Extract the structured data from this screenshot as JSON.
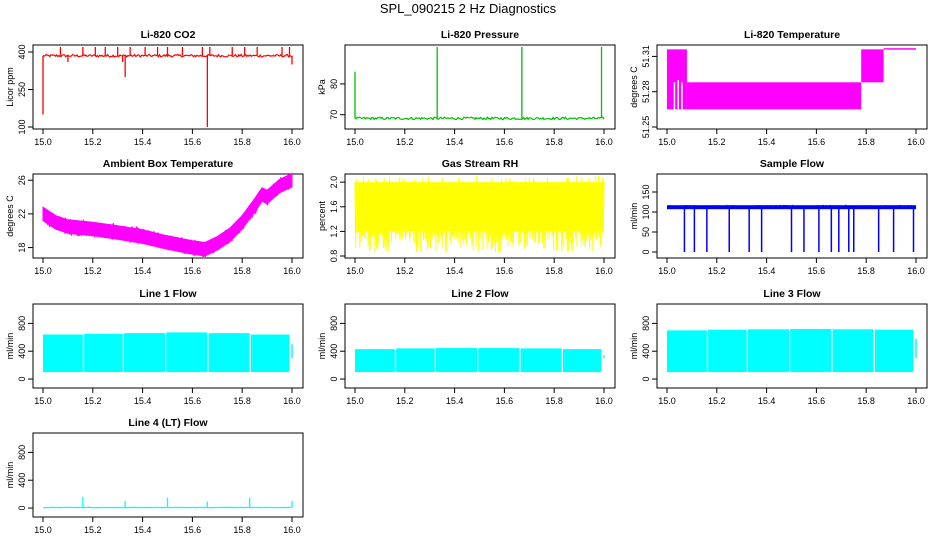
{
  "figure": {
    "title": "SPL_090215  2 Hz Diagnostics"
  },
  "chart_data": [
    {
      "type": "line",
      "title": "Li-820 CO2",
      "ylabel": "Licor ppm",
      "color": "#ff0000",
      "xlim": [
        15.0,
        16.0
      ],
      "ylim": [
        100,
        420
      ],
      "x_ticks": [
        "15.0",
        "15.2",
        "15.4",
        "15.6",
        "15.8",
        "16.0"
      ],
      "y_ticks": [
        {
          "v": 100,
          "label": "100"
        },
        {
          "v": 250,
          "label": "250"
        },
        {
          "v": 400,
          "label": "400"
        }
      ],
      "baseline": 385,
      "noise": 5,
      "pattern": "spikes",
      "spikes": [
        {
          "x": 15.0,
          "y": 150
        },
        {
          "x": 15.07,
          "y": 420
        },
        {
          "x": 15.1,
          "y": 360
        },
        {
          "x": 15.16,
          "y": 420
        },
        {
          "x": 15.21,
          "y": 420
        },
        {
          "x": 15.25,
          "y": 420
        },
        {
          "x": 15.3,
          "y": 420
        },
        {
          "x": 15.32,
          "y": 360
        },
        {
          "x": 15.33,
          "y": 300
        },
        {
          "x": 15.35,
          "y": 420
        },
        {
          "x": 15.41,
          "y": 420
        },
        {
          "x": 15.46,
          "y": 420
        },
        {
          "x": 15.5,
          "y": 420
        },
        {
          "x": 15.56,
          "y": 420
        },
        {
          "x": 15.64,
          "y": 420
        },
        {
          "x": 15.66,
          "y": 100
        },
        {
          "x": 15.67,
          "y": 420
        },
        {
          "x": 15.76,
          "y": 420
        },
        {
          "x": 15.81,
          "y": 420
        },
        {
          "x": 15.86,
          "y": 420
        },
        {
          "x": 15.96,
          "y": 420
        },
        {
          "x": 15.99,
          "y": 420
        },
        {
          "x": 16.0,
          "y": 350
        }
      ]
    },
    {
      "type": "line",
      "title": "Li-820 Pressure",
      "ylabel": "kPa",
      "color": "#00c000",
      "xlim": [
        15.0,
        16.0
      ],
      "ylim": [
        66,
        92
      ],
      "x_ticks": [
        "15.0",
        "15.2",
        "15.4",
        "15.6",
        "15.8",
        "16.0"
      ],
      "y_ticks": [
        {
          "v": 70,
          "label": "70"
        },
        {
          "v": 80,
          "label": "80"
        }
      ],
      "baseline": 68.8,
      "noise": 0.4,
      "pattern": "spikes",
      "spikes": [
        {
          "x": 15.0,
          "y": 84
        },
        {
          "x": 15.33,
          "y": 92
        },
        {
          "x": 15.67,
          "y": 92
        },
        {
          "x": 15.99,
          "y": 92
        }
      ]
    },
    {
      "type": "line",
      "title": "Li-820 Temperature",
      "ylabel": "degrees C",
      "color": "#ff00ff",
      "xlim": [
        15.0,
        16.0
      ],
      "ylim": [
        51.25,
        51.318
      ],
      "x_ticks": [
        "15.0",
        "15.2",
        "15.4",
        "15.6",
        "15.8",
        "16.0"
      ],
      "y_ticks": [
        {
          "v": 51.25,
          "label": "51.25"
        },
        {
          "v": 51.28,
          "label": "51.28"
        },
        {
          "v": 51.31,
          "label": "51.31"
        }
      ],
      "pattern": "bands",
      "bands": [
        {
          "x0": 15.0,
          "x1": 15.08,
          "ylo": 51.265,
          "yhi": 51.316
        },
        {
          "x0": 15.08,
          "x1": 15.78,
          "ylo": 51.265,
          "yhi": 51.288
        },
        {
          "x0": 15.78,
          "x1": 15.87,
          "ylo": 51.288,
          "yhi": 51.316
        },
        {
          "x0": 15.87,
          "x1": 16.0,
          "ylo": 51.316,
          "yhi": 51.317
        }
      ],
      "gaps": [
        {
          "x": 15.03,
          "ylo": 51.25,
          "yhi": 51.288
        },
        {
          "x": 15.045,
          "ylo": 51.25,
          "yhi": 51.29
        },
        {
          "x": 15.06,
          "ylo": 51.25,
          "yhi": 51.288
        },
        {
          "x": 15.88,
          "ylo": 51.288,
          "yhi": 51.316
        }
      ]
    },
    {
      "type": "line",
      "title": "Ambient Box Temperature",
      "ylabel": "degrees C",
      "color": "#ff00ff",
      "xlim": [
        15.0,
        16.0
      ],
      "ylim": [
        17,
        26.5
      ],
      "x_ticks": [
        "15.0",
        "15.2",
        "15.4",
        "15.6",
        "15.8",
        "16.0"
      ],
      "y_ticks": [
        {
          "v": 18,
          "label": "18"
        },
        {
          "v": 22,
          "label": "22"
        },
        {
          "v": 26,
          "label": "26"
        }
      ],
      "pattern": "curve",
      "thickness": 0.8,
      "points": [
        {
          "x": 15.0,
          "y": 22.0
        },
        {
          "x": 15.05,
          "y": 21.0
        },
        {
          "x": 15.1,
          "y": 20.5
        },
        {
          "x": 15.2,
          "y": 20.2
        },
        {
          "x": 15.3,
          "y": 19.8
        },
        {
          "x": 15.4,
          "y": 19.3
        },
        {
          "x": 15.5,
          "y": 18.6
        },
        {
          "x": 15.6,
          "y": 18.0
        },
        {
          "x": 15.65,
          "y": 17.8
        },
        {
          "x": 15.7,
          "y": 18.5
        },
        {
          "x": 15.75,
          "y": 19.5
        },
        {
          "x": 15.8,
          "y": 21.0
        },
        {
          "x": 15.85,
          "y": 23.0
        },
        {
          "x": 15.88,
          "y": 24.3
        },
        {
          "x": 15.9,
          "y": 24.0
        },
        {
          "x": 15.95,
          "y": 25.3
        },
        {
          "x": 16.0,
          "y": 26.0
        }
      ]
    },
    {
      "type": "line",
      "title": "Gas Stream RH",
      "ylabel": "percent",
      "color": "#ffff00",
      "xlim": [
        15.0,
        16.0
      ],
      "ylim": [
        0.8,
        2.1
      ],
      "x_ticks": [
        "15.0",
        "15.2",
        "15.4",
        "15.6",
        "15.8",
        "16.0"
      ],
      "y_ticks": [
        {
          "v": 0.8,
          "label": "0.8"
        },
        {
          "v": 1.2,
          "label": "1.2"
        },
        {
          "v": 1.6,
          "label": "1.6"
        },
        {
          "v": 2.0,
          "label": "2.0"
        }
      ],
      "pattern": "band",
      "band": {
        "ylo": 1.2,
        "yhi": 2.0,
        "extlo": 0.85,
        "exthi": 2.1
      }
    },
    {
      "type": "line",
      "title": "Sample Flow",
      "ylabel": "ml/min",
      "color": "#0000ff",
      "xlim": [
        15.0,
        16.0
      ],
      "ylim": [
        -10,
        190
      ],
      "x_ticks": [
        "15.0",
        "15.2",
        "15.4",
        "15.6",
        "15.8",
        "16.0"
      ],
      "y_ticks": [
        {
          "v": 0,
          "label": "0"
        },
        {
          "v": 50,
          "label": "50"
        },
        {
          "v": 100,
          "label": "100"
        },
        {
          "v": 150,
          "label": "150"
        }
      ],
      "baseline": 112,
      "noise": 3,
      "pattern": "drops",
      "drops": [
        15.07,
        15.11,
        15.16,
        15.25,
        15.33,
        15.38,
        15.5,
        15.55,
        15.61,
        15.66,
        15.69,
        15.73,
        15.75,
        15.85,
        15.91,
        15.99
      ],
      "drop_to": 0
    },
    {
      "type": "line",
      "title": "Line 1 Flow",
      "ylabel": "ml/min",
      "color": "#00ffff",
      "xlim": [
        15.0,
        16.0
      ],
      "ylim": [
        -100,
        1050
      ],
      "x_ticks": [
        "15.0",
        "15.2",
        "15.4",
        "15.6",
        "15.8",
        "16.0"
      ],
      "y_ticks": [
        {
          "v": 0,
          "label": "0"
        },
        {
          "v": 400,
          "label": "400"
        },
        {
          "v": 800,
          "label": "800"
        }
      ],
      "pattern": "blocks",
      "ylo": 100,
      "segments": [
        {
          "x0": 15.0,
          "x1": 15.16,
          "yhi": 640
        },
        {
          "x0": 15.165,
          "x1": 15.32,
          "yhi": 650
        },
        {
          "x0": 15.325,
          "x1": 15.49,
          "yhi": 660
        },
        {
          "x0": 15.495,
          "x1": 15.66,
          "yhi": 670
        },
        {
          "x0": 15.665,
          "x1": 15.83,
          "yhi": 660
        },
        {
          "x0": 15.835,
          "x1": 15.99,
          "yhi": 640
        }
      ],
      "tail": {
        "x": 16.0,
        "y": 500
      }
    },
    {
      "type": "line",
      "title": "Line 2 Flow",
      "ylabel": "ml/min",
      "color": "#00ffff",
      "xlim": [
        15.0,
        16.0
      ],
      "ylim": [
        -100,
        1050
      ],
      "x_ticks": [
        "15.0",
        "15.2",
        "15.4",
        "15.6",
        "15.8",
        "16.0"
      ],
      "y_ticks": [
        {
          "v": 0,
          "label": "0"
        },
        {
          "v": 400,
          "label": "400"
        },
        {
          "v": 800,
          "label": "800"
        }
      ],
      "pattern": "blocks",
      "ylo": 100,
      "segments": [
        {
          "x0": 15.0,
          "x1": 15.16,
          "yhi": 430
        },
        {
          "x0": 15.165,
          "x1": 15.32,
          "yhi": 440
        },
        {
          "x0": 15.325,
          "x1": 15.49,
          "yhi": 445
        },
        {
          "x0": 15.495,
          "x1": 15.66,
          "yhi": 445
        },
        {
          "x0": 15.665,
          "x1": 15.83,
          "yhi": 440
        },
        {
          "x0": 15.835,
          "x1": 15.99,
          "yhi": 430
        }
      ],
      "tail": {
        "x": 16.0,
        "y": 340
      }
    },
    {
      "type": "line",
      "title": "Line 3 Flow",
      "ylabel": "ml/min",
      "color": "#00ffff",
      "xlim": [
        15.0,
        16.0
      ],
      "ylim": [
        -100,
        1050
      ],
      "x_ticks": [
        "15.0",
        "15.2",
        "15.4",
        "15.6",
        "15.8",
        "16.0"
      ],
      "y_ticks": [
        {
          "v": 0,
          "label": "0"
        },
        {
          "v": 400,
          "label": "400"
        },
        {
          "v": 800,
          "label": "800"
        }
      ],
      "pattern": "blocks",
      "ylo": 100,
      "segments": [
        {
          "x0": 15.0,
          "x1": 15.16,
          "yhi": 700
        },
        {
          "x0": 15.165,
          "x1": 15.32,
          "yhi": 710
        },
        {
          "x0": 15.325,
          "x1": 15.49,
          "yhi": 715
        },
        {
          "x0": 15.495,
          "x1": 15.66,
          "yhi": 720
        },
        {
          "x0": 15.665,
          "x1": 15.83,
          "yhi": 715
        },
        {
          "x0": 15.835,
          "x1": 15.99,
          "yhi": 710
        }
      ],
      "tail": {
        "x": 16.0,
        "y": 580
      }
    },
    {
      "type": "line",
      "title": "Line 4 (LT) Flow",
      "ylabel": "ml/min",
      "color": "#00ffff",
      "xlim": [
        15.0,
        16.0
      ],
      "ylim": [
        -100,
        1050
      ],
      "x_ticks": [
        "15.0",
        "15.2",
        "15.4",
        "15.6",
        "15.8",
        "16.0"
      ],
      "y_ticks": [
        {
          "v": 0,
          "label": "0"
        },
        {
          "v": 400,
          "label": "400"
        },
        {
          "v": 800,
          "label": "800"
        }
      ],
      "baseline": 8,
      "noise": 3,
      "pattern": "spikes",
      "spikes": [
        {
          "x": 15.16,
          "y": 160
        },
        {
          "x": 15.33,
          "y": 100
        },
        {
          "x": 15.5,
          "y": 150
        },
        {
          "x": 15.66,
          "y": 90
        },
        {
          "x": 15.83,
          "y": 150
        },
        {
          "x": 16.0,
          "y": 100
        }
      ]
    }
  ]
}
